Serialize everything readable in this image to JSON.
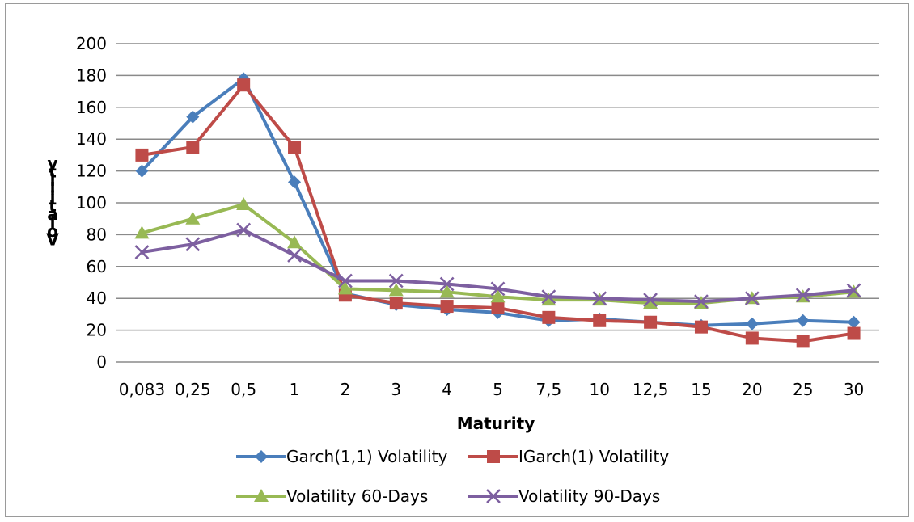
{
  "chart_data": {
    "type": "line",
    "title": "",
    "xlabel": "Maturity",
    "ylabel": "Volatility",
    "ylim": [
      0,
      200
    ],
    "yticks": [
      0,
      20,
      40,
      60,
      80,
      100,
      120,
      140,
      160,
      180,
      200
    ],
    "grid": true,
    "legend_position": "bottom",
    "categories": [
      "0,083",
      "0,25",
      "0,5",
      "1",
      "2",
      "3",
      "4",
      "5",
      "7,5",
      "10",
      "12,5",
      "15",
      "20",
      "25",
      "30"
    ],
    "series": [
      {
        "name": "Garch(1,1) Volatility",
        "color": "#4a7ebb",
        "marker": "diamond",
        "values": [
          120,
          154,
          178,
          113,
          43,
          36,
          33,
          31,
          26,
          27,
          25,
          23,
          24,
          26,
          25
        ]
      },
      {
        "name": "IGarch(1) Volatility",
        "color": "#be4b48",
        "marker": "square",
        "values": [
          130,
          135,
          174,
          135,
          42,
          37,
          35,
          34,
          28,
          26,
          25,
          22,
          15,
          13,
          18
        ]
      },
      {
        "name": "Volatility 60-Days",
        "color": "#98b954",
        "marker": "triangle",
        "values": [
          81,
          90,
          99,
          75,
          46,
          45,
          44,
          41,
          39,
          39,
          37,
          37,
          40,
          41,
          44
        ]
      },
      {
        "name": "Volatility 90-Days",
        "color": "#7d5fa0",
        "marker": "x",
        "values": [
          69,
          74,
          83,
          67,
          51,
          51,
          49,
          46,
          41,
          40,
          39,
          38,
          40,
          42,
          45
        ]
      }
    ]
  }
}
